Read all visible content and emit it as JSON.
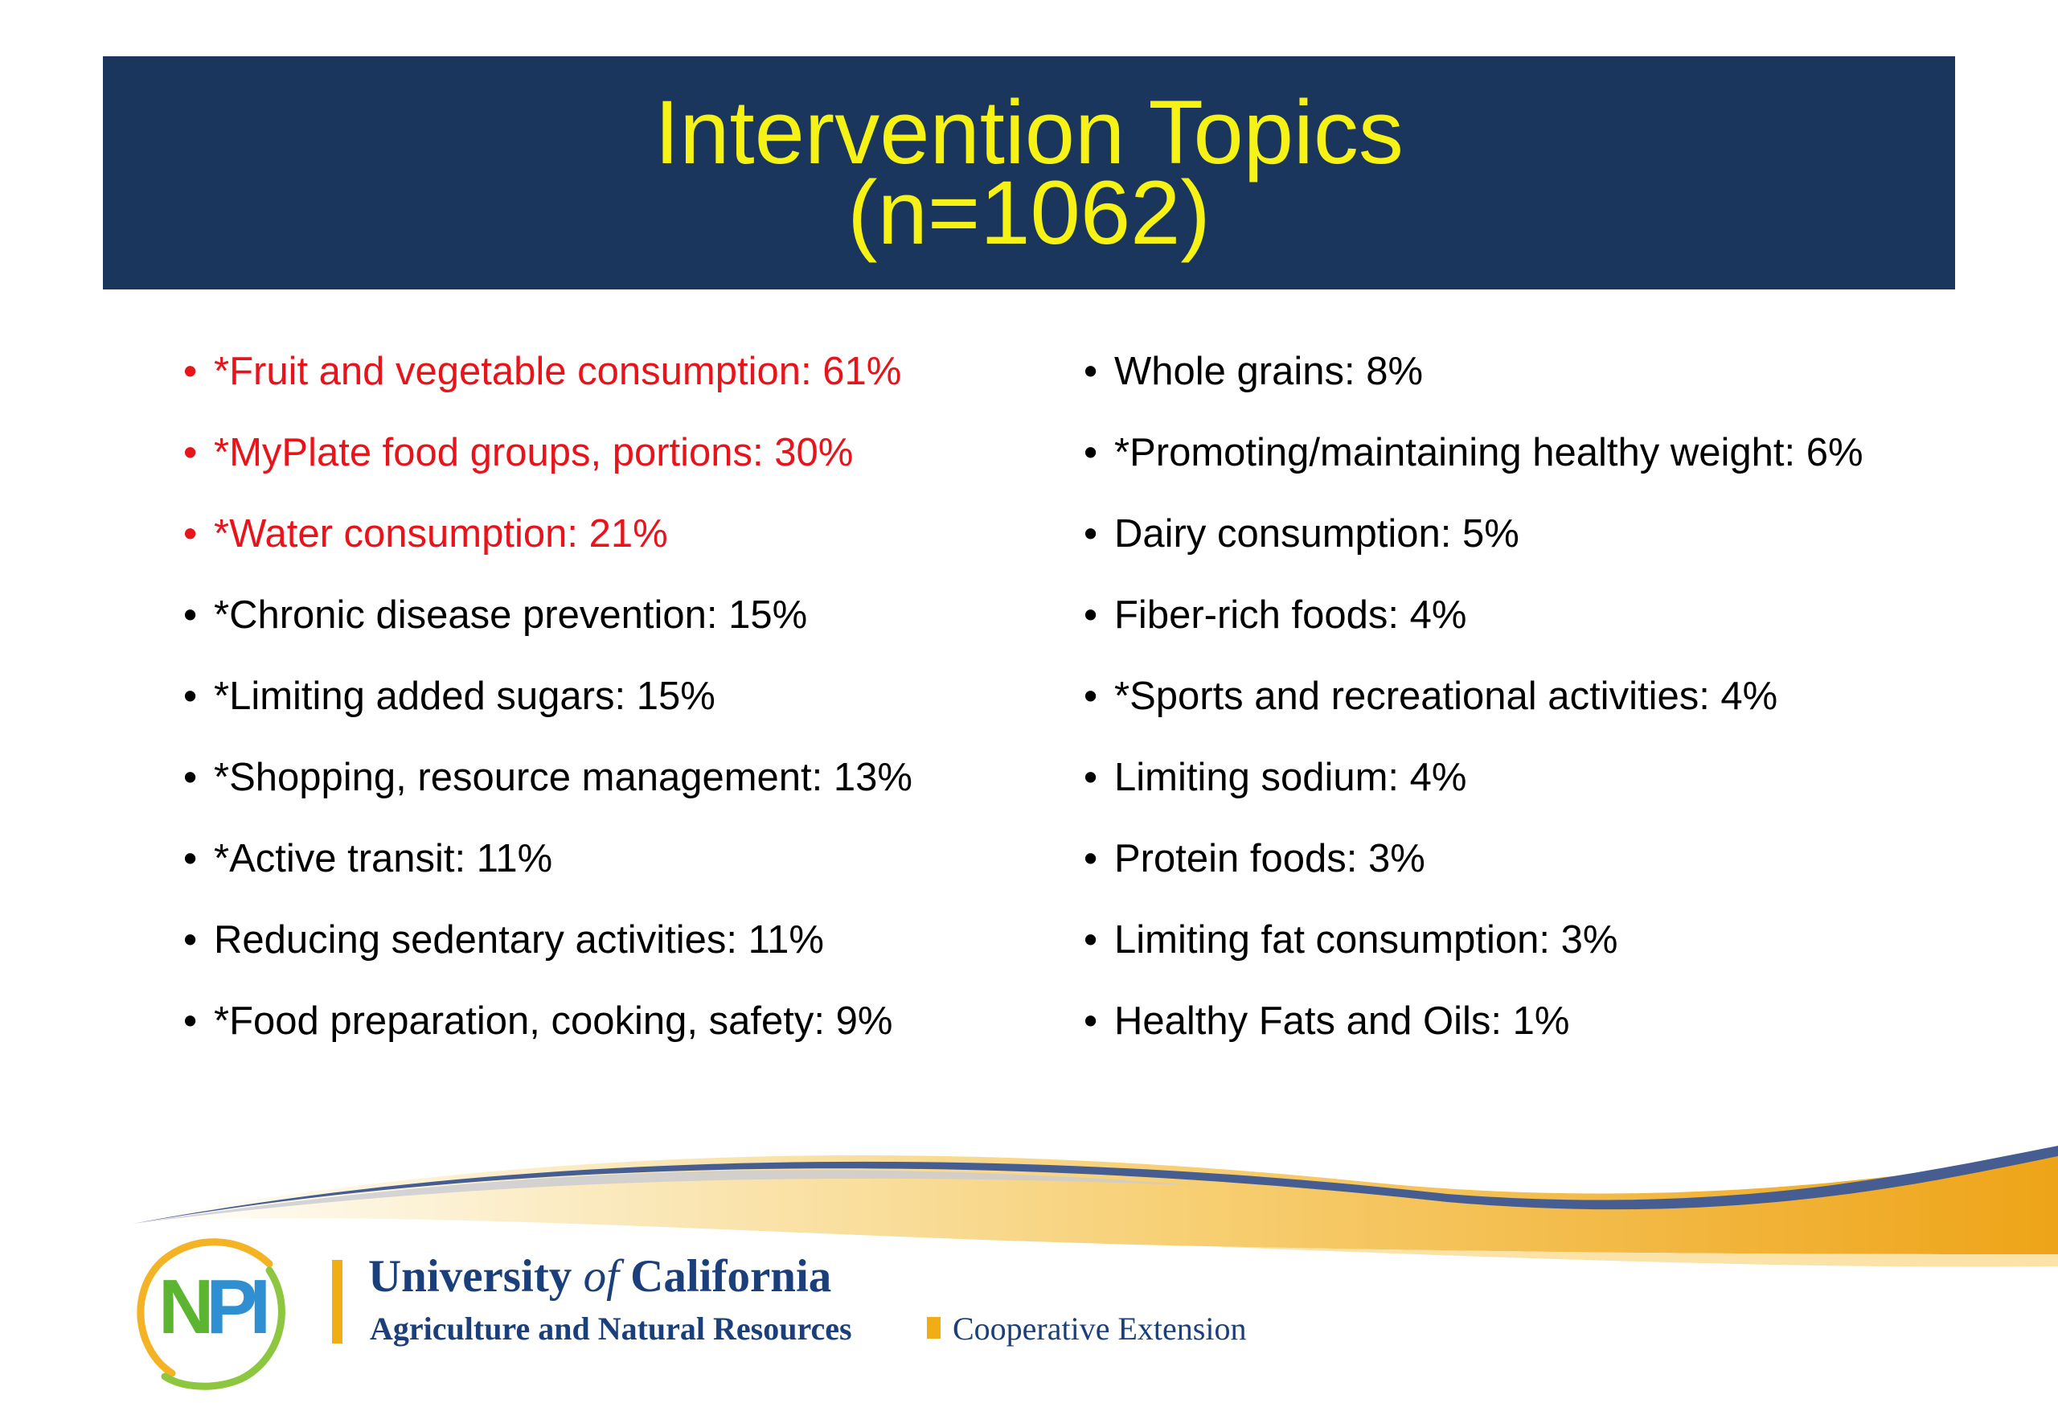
{
  "header": {
    "title_line1": "Intervention Topics",
    "title_line2": "(n=1062)"
  },
  "bullet_glyph": "•",
  "topics_left": [
    {
      "text": "*Fruit and vegetable consumption: 61%",
      "highlight": true
    },
    {
      "text": "*MyPlate food groups, portions: 30%",
      "highlight": true
    },
    {
      "text": "*Water consumption: 21%",
      "highlight": true
    },
    {
      "text": "*Chronic disease prevention: 15%",
      "highlight": false
    },
    {
      "text": "*Limiting added sugars: 15%",
      "highlight": false
    },
    {
      "text": "*Shopping, resource management: 13%",
      "highlight": false
    },
    {
      "text": "*Active transit: 11%",
      "highlight": false
    },
    {
      "text": "Reducing sedentary activities: 11%",
      "highlight": false
    },
    {
      "text": "*Food preparation, cooking, safety: 9%",
      "highlight": false
    }
  ],
  "topics_right": [
    {
      "text": "Whole grains: 8%",
      "highlight": false
    },
    {
      "text": "*Promoting/maintaining healthy weight: 6%",
      "highlight": false
    },
    {
      "text": "Dairy consumption: 5%",
      "highlight": false
    },
    {
      "text": "Fiber-rich foods: 4%",
      "highlight": false
    },
    {
      "text": "*Sports and recreational activities: 4%",
      "highlight": false
    },
    {
      "text": "Limiting sodium: 4%",
      "highlight": false
    },
    {
      "text": "Protein foods: 3%",
      "highlight": false
    },
    {
      "text": "Limiting fat consumption: 3%",
      "highlight": false
    },
    {
      "text": "Healthy Fats and Oils: 1%",
      "highlight": false
    }
  ],
  "footer": {
    "npi_logo_text": "NPI",
    "uc_university": "University ",
    "uc_of": "of",
    "uc_california": " California",
    "uc_division": "Agriculture and Natural Resources",
    "uc_extension": "Cooperative Extension"
  },
  "colors": {
    "banner": "#1b365d",
    "title": "#f7f216",
    "highlight_text": "#e8141b",
    "body_text": "#000000",
    "uc_blue": "#1b3f7a",
    "uc_gold": "#f0ad16",
    "npi_green": "#5bb531",
    "npi_blue": "#2f8fd0"
  }
}
